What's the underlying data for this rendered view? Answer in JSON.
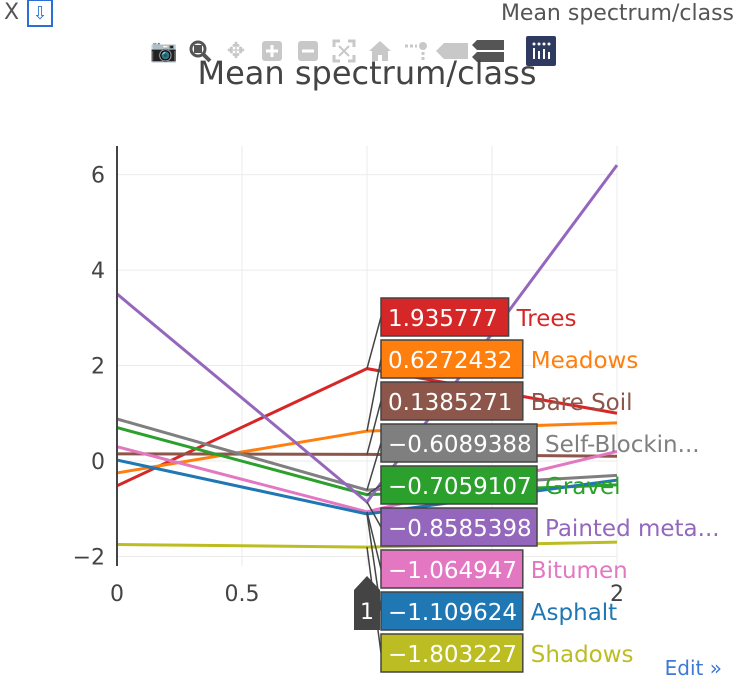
{
  "window": {
    "close_label": "X",
    "download_label": "⇩",
    "title": "Mean spectrum/class"
  },
  "modebar": {
    "icons": [
      "camera-icon",
      "zoom-icon",
      "pan-icon",
      "zoom-in-icon",
      "zoom-out-icon",
      "autoscale-icon",
      "home-icon",
      "spike-lines-icon",
      "hover-closest-icon",
      "hover-compare-icon",
      "plotly-logo-icon"
    ]
  },
  "edit_label": "Edit »",
  "chart_data": {
    "type": "line",
    "title": "Mean spectrum/class",
    "xlabel": "",
    "ylabel": "",
    "xlim": [
      0,
      2
    ],
    "ylim": [
      -2.2,
      6.6
    ],
    "x_ticks": [
      0,
      0.5,
      1,
      1.5,
      2
    ],
    "x_tick_labels": [
      "0",
      "0.5",
      "",
      "",
      "2"
    ],
    "y_ticks": [
      -2,
      0,
      2,
      4,
      6
    ],
    "y_tick_labels": [
      "−2",
      "0",
      "2",
      "4",
      "6"
    ],
    "grid": true,
    "hover_x": 1,
    "hover_x_label": "1",
    "x": [
      0,
      1,
      2
    ],
    "series": [
      {
        "name": "Trees",
        "hover_name": "Trees",
        "hover_value": "1.935777",
        "color": "#d62728",
        "values": [
          -0.52,
          1.935777,
          1.0
        ]
      },
      {
        "name": "Meadows",
        "hover_name": "Meadows",
        "hover_value": "0.6272432",
        "color": "#ff7f0e",
        "values": [
          -0.25,
          0.6272432,
          0.8
        ]
      },
      {
        "name": "Bare Soil",
        "hover_name": "Bare Soil",
        "hover_value": "0.1385271",
        "color": "#8c564b",
        "values": [
          0.15,
          0.1385271,
          0.1
        ]
      },
      {
        "name": "Self-Blocking",
        "hover_name": "Self-Blockin...",
        "hover_value": "−0.6089388",
        "color": "#7f7f7f",
        "values": [
          0.88,
          -0.6089388,
          -0.3
        ]
      },
      {
        "name": "Gravel",
        "hover_name": "Gravel",
        "hover_value": "−0.7059107",
        "color": "#2ca02c",
        "values": [
          0.7,
          -0.7059107,
          -0.5
        ]
      },
      {
        "name": "Painted metal",
        "hover_name": "Painted meta...",
        "hover_value": "−0.8585398",
        "color": "#9467bd",
        "values": [
          3.5,
          -0.8585398,
          6.2
        ]
      },
      {
        "name": "Bitumen",
        "hover_name": "Bitumen",
        "hover_value": "−1.064947",
        "color": "#e377c2",
        "values": [
          0.3,
          -1.064947,
          0.2
        ]
      },
      {
        "name": "Asphalt",
        "hover_name": "Asphalt",
        "hover_value": "−1.109624",
        "color": "#1f77b4",
        "values": [
          0.02,
          -1.109624,
          -0.4
        ]
      },
      {
        "name": "Shadows",
        "hover_name": "Shadows",
        "hover_value": "−1.803227",
        "color": "#bcbd22",
        "values": [
          -1.75,
          -1.803227,
          -1.7
        ]
      }
    ]
  }
}
